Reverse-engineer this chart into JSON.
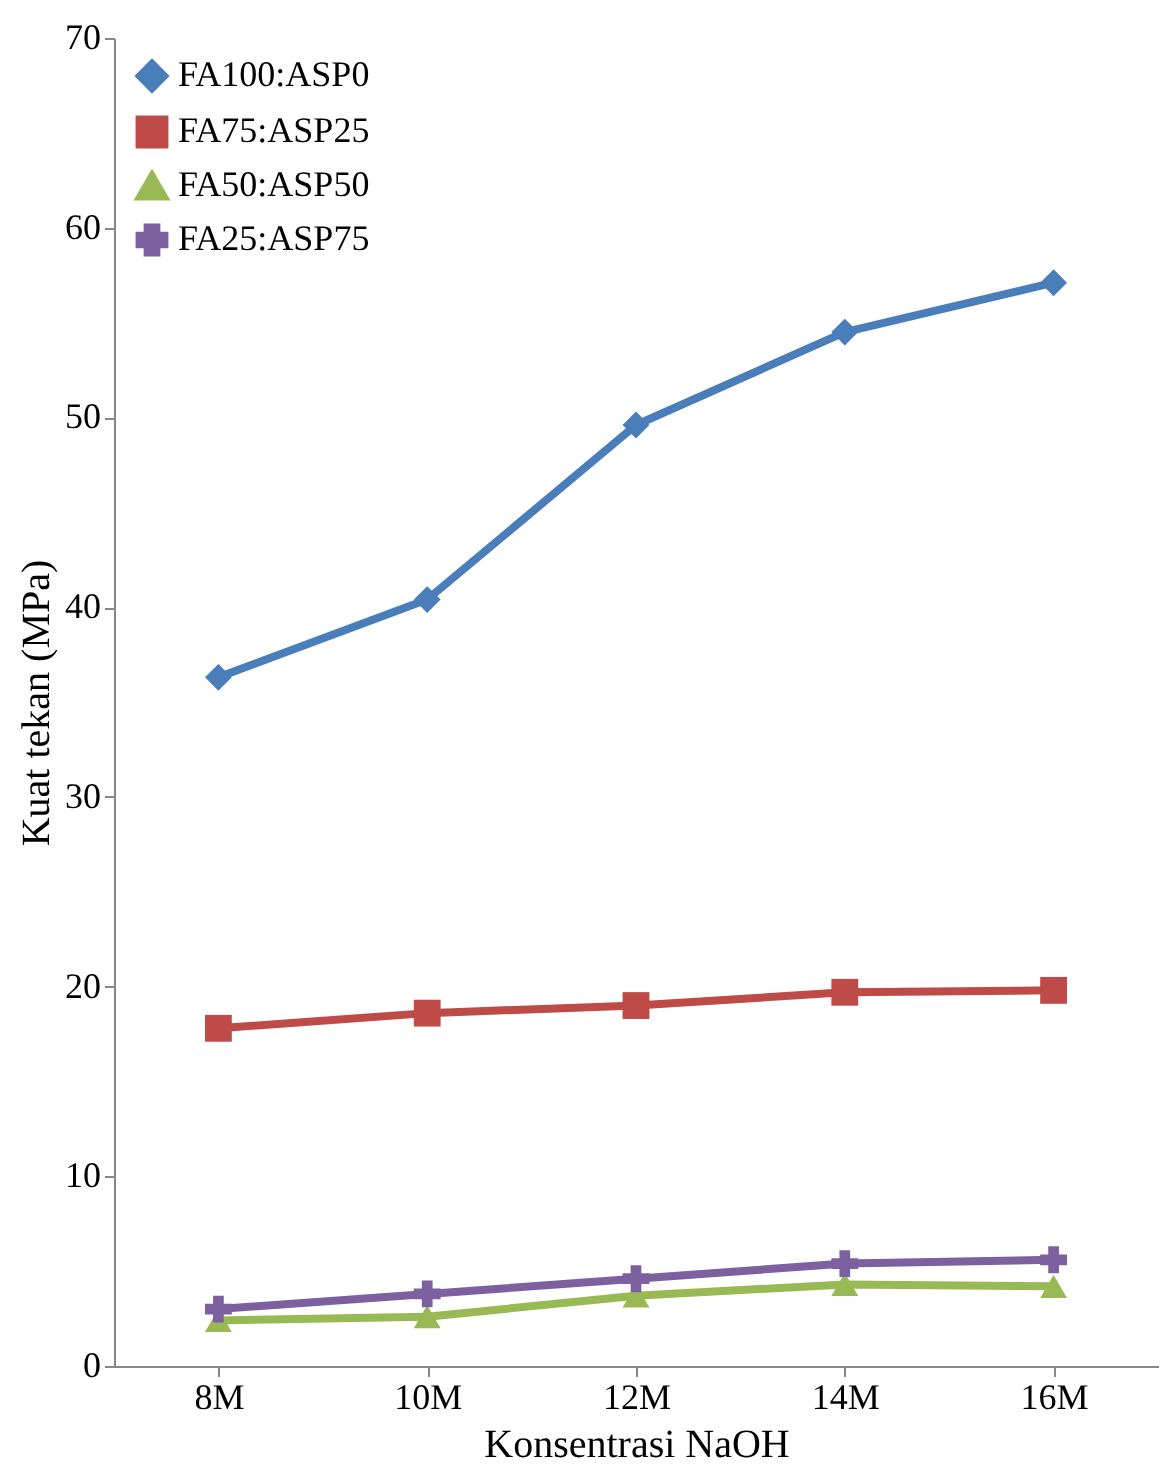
{
  "chart_data": {
    "type": "line",
    "xlabel": "Konsentrasi NaOH",
    "ylabel": "Kuat tekan (MPa)",
    "categories": [
      "8M",
      "10M",
      "12M",
      "14M",
      "16M"
    ],
    "series": [
      {
        "name": "FA100:ASP0",
        "color": "#4a7ebb",
        "marker": "diamond",
        "values": [
          36.3,
          40.4,
          49.6,
          54.5,
          57.1
        ]
      },
      {
        "name": "FA75:ASP25",
        "color": "#be4b48",
        "marker": "square",
        "values": [
          17.8,
          18.6,
          19.0,
          19.7,
          19.8
        ]
      },
      {
        "name": "FA50:ASP50",
        "color": "#98b954",
        "marker": "triangle",
        "values": [
          2.4,
          2.6,
          3.7,
          4.3,
          4.2
        ]
      },
      {
        "name": "FA25:ASP75",
        "color": "#7d60a0",
        "marker": "cross",
        "values": [
          3.0,
          3.8,
          4.6,
          5.4,
          5.6
        ]
      }
    ],
    "ylim": [
      0,
      70
    ],
    "yticks": [
      0,
      10,
      20,
      30,
      40,
      50,
      60,
      70
    ],
    "grid": false,
    "legend": "top left",
    "line_style": "solid"
  }
}
